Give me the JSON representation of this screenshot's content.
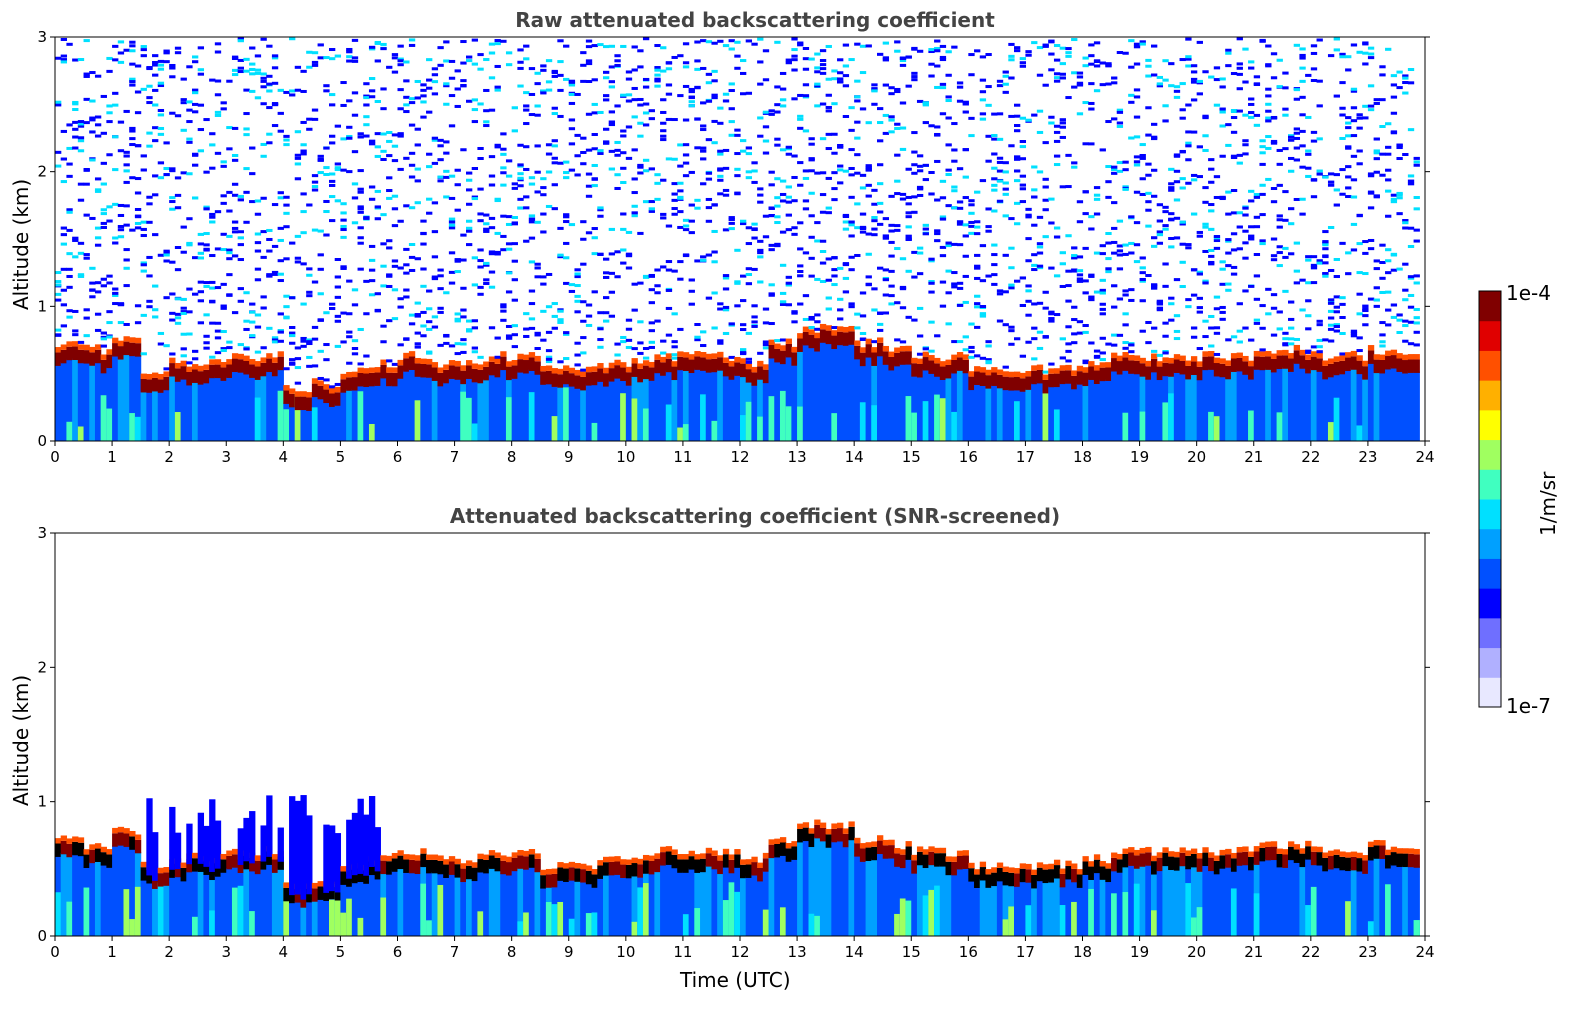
{
  "chart_data": [
    {
      "type": "heatmap",
      "title": "Raw attenuated backscattering coefficient",
      "xlabel": "",
      "ylabel": "Altitude (km)",
      "xlim": [
        0,
        24
      ],
      "ylim": [
        0,
        3
      ],
      "x_ticks": [
        "0",
        "1",
        "2",
        "3",
        "4",
        "5",
        "6",
        "7",
        "8",
        "9",
        "10",
        "11",
        "12",
        "13",
        "14",
        "15",
        "16",
        "17",
        "18",
        "19",
        "20",
        "21",
        "22",
        "23",
        "24"
      ],
      "y_ticks": [
        "0",
        "1",
        "2",
        "3"
      ],
      "layer_top_km": [
        0.65,
        0.6,
        0.7,
        0.45,
        0.5,
        0.5,
        0.55,
        0.55,
        0.3,
        0.35,
        0.45,
        0.5,
        0.55,
        0.5,
        0.5,
        0.55,
        0.55,
        0.45,
        0.45,
        0.5,
        0.5,
        0.55,
        0.55,
        0.55,
        0.5,
        0.65,
        0.75,
        0.75,
        0.65,
        0.6,
        0.55,
        0.55,
        0.45,
        0.45,
        0.45,
        0.45,
        0.5,
        0.55,
        0.55,
        0.55,
        0.55,
        0.55,
        0.6,
        0.6,
        0.55,
        0.55,
        0.6,
        0.55
      ],
      "noise": "high"
    },
    {
      "type": "heatmap",
      "title": "Attenuated backscattering coefficient (SNR-screened)",
      "xlabel": "Time (UTC)",
      "ylabel": "Altitude (km)",
      "xlim": [
        0,
        24
      ],
      "ylim": [
        0,
        3
      ],
      "x_ticks": [
        "0",
        "1",
        "2",
        "3",
        "4",
        "5",
        "6",
        "7",
        "8",
        "9",
        "10",
        "11",
        "12",
        "13",
        "14",
        "15",
        "16",
        "17",
        "18",
        "19",
        "20",
        "21",
        "22",
        "23",
        "24"
      ],
      "y_ticks": [
        "0",
        "1",
        "2",
        "3"
      ],
      "layer_top_km": [
        0.65,
        0.6,
        0.7,
        0.45,
        0.5,
        0.5,
        0.55,
        0.55,
        0.3,
        0.35,
        0.45,
        0.5,
        0.55,
        0.5,
        0.5,
        0.55,
        0.55,
        0.45,
        0.45,
        0.5,
        0.5,
        0.55,
        0.55,
        0.55,
        0.5,
        0.65,
        0.75,
        0.75,
        0.65,
        0.6,
        0.55,
        0.55,
        0.45,
        0.45,
        0.45,
        0.45,
        0.5,
        0.55,
        0.55,
        0.55,
        0.55,
        0.55,
        0.6,
        0.6,
        0.55,
        0.55,
        0.6,
        0.55
      ],
      "noise": "screened"
    }
  ],
  "colorbar": {
    "label": "1/m/sr",
    "max_label": "1e-4",
    "min_label": "1e-7",
    "colors": [
      "#e8e8ff",
      "#b0b0ff",
      "#6f6fff",
      "#0000ff",
      "#0050ff",
      "#00a0ff",
      "#00e0ff",
      "#40ffc0",
      "#a0ff60",
      "#ffff00",
      "#ffb000",
      "#ff5000",
      "#e00000",
      "#800000"
    ]
  }
}
